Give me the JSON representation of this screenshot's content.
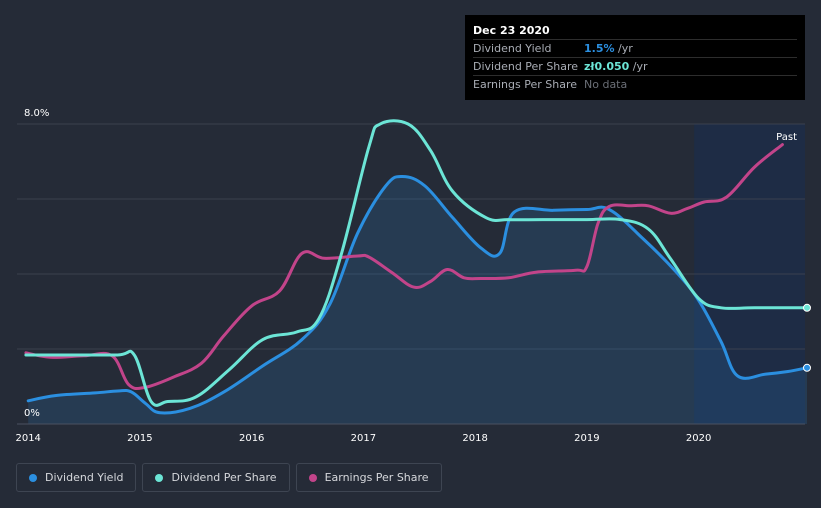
{
  "tooltip": {
    "date": "Dec 23 2020",
    "rows": [
      {
        "label": "Dividend Yield",
        "value": "1.5%",
        "suffix": " /yr"
      },
      {
        "label": "Dividend Per Share",
        "value": "zł0.050",
        "suffix": " /yr"
      },
      {
        "label": "Earnings Per Share",
        "value": "No data",
        "suffix": ""
      }
    ]
  },
  "legend": [
    {
      "label": "Dividend Yield",
      "color": "#2b8fe0"
    },
    {
      "label": "Dividend Per Share",
      "color": "#6ce5d6"
    },
    {
      "label": "Earnings Per Share",
      "color": "#c2448a"
    }
  ],
  "colors": {
    "yield": "#2b8fe0",
    "dps": "#6ce5d6",
    "eps": "#c2448a",
    "grid": "#3a414e",
    "past_band": "#1d2d48"
  },
  "chart_data": {
    "type": "line",
    "title": "",
    "xlabel": "",
    "ylabel": "",
    "ylim": [
      0,
      8
    ],
    "xlim": [
      2013.9,
      2020.97
    ],
    "past_start": 2019.96,
    "x_ticks": [
      2014,
      2015,
      2016,
      2017,
      2018,
      2019,
      2020
    ],
    "x_tick_labels": [
      "2014",
      "2015",
      "2016",
      "2017",
      "2018",
      "2019",
      "2020"
    ],
    "y_tick_labels": [
      {
        "value": 8,
        "label": "8.0%"
      },
      {
        "value": 0,
        "label": "0%"
      }
    ],
    "past_label": "Past",
    "series": [
      {
        "name": "Dividend Yield",
        "key": "yield",
        "area": true,
        "end_marker": true,
        "x": [
          2014.0,
          2014.25,
          2014.6,
          2014.8,
          2014.92,
          2015.05,
          2015.18,
          2015.45,
          2015.75,
          2016.1,
          2016.45,
          2016.7,
          2016.95,
          2017.2,
          2017.35,
          2017.55,
          2017.8,
          2018.05,
          2018.22,
          2018.35,
          2018.7,
          2019.0,
          2019.2,
          2019.5,
          2019.8,
          2020.0,
          2020.2,
          2020.35,
          2020.6,
          2020.8,
          2020.97
        ],
        "values": [
          0.62,
          0.76,
          0.83,
          0.88,
          0.86,
          0.55,
          0.3,
          0.42,
          0.85,
          1.55,
          2.25,
          3.2,
          5.1,
          6.35,
          6.6,
          6.35,
          5.5,
          4.7,
          4.55,
          5.65,
          5.7,
          5.72,
          5.72,
          4.95,
          4.05,
          3.3,
          2.2,
          1.28,
          1.33,
          1.4,
          1.5
        ]
      },
      {
        "name": "Dividend Per Share",
        "key": "dps",
        "area": false,
        "end_marker": true,
        "x": [
          2013.98,
          2014.3,
          2014.8,
          2014.95,
          2015.1,
          2015.25,
          2015.5,
          2015.8,
          2016.1,
          2016.4,
          2016.6,
          2016.8,
          2017.05,
          2017.15,
          2017.4,
          2017.6,
          2017.8,
          2018.1,
          2018.3,
          2018.6,
          2019.0,
          2019.3,
          2019.55,
          2019.75,
          2020.0,
          2020.2,
          2020.5,
          2020.97
        ],
        "values": [
          1.84,
          1.84,
          1.84,
          1.84,
          0.6,
          0.6,
          0.72,
          1.45,
          2.25,
          2.45,
          2.8,
          4.5,
          7.4,
          8.0,
          8.0,
          7.3,
          6.2,
          5.5,
          5.45,
          5.45,
          5.45,
          5.45,
          5.2,
          4.4,
          3.35,
          3.1,
          3.1,
          3.1
        ]
      },
      {
        "name": "Earnings Per Share",
        "key": "eps",
        "area": false,
        "end_marker": false,
        "x": [
          2013.98,
          2014.2,
          2014.5,
          2014.75,
          2014.9,
          2015.05,
          2015.3,
          2015.55,
          2015.75,
          2016.0,
          2016.25,
          2016.45,
          2016.65,
          2016.95,
          2017.05,
          2017.25,
          2017.45,
          2017.6,
          2017.75,
          2017.9,
          2018.05,
          2018.3,
          2018.55,
          2018.9,
          2019.0,
          2019.1,
          2019.2,
          2019.4,
          2019.55,
          2019.75,
          2019.9,
          2020.05,
          2020.25,
          2020.5,
          2020.75
        ],
        "values": [
          1.9,
          1.78,
          1.82,
          1.82,
          1.05,
          0.98,
          1.25,
          1.62,
          2.35,
          3.15,
          3.55,
          4.55,
          4.42,
          4.48,
          4.45,
          4.05,
          3.65,
          3.8,
          4.12,
          3.9,
          3.88,
          3.9,
          4.05,
          4.1,
          4.2,
          5.35,
          5.8,
          5.82,
          5.82,
          5.62,
          5.75,
          5.92,
          6.05,
          6.85,
          7.45
        ]
      }
    ]
  }
}
